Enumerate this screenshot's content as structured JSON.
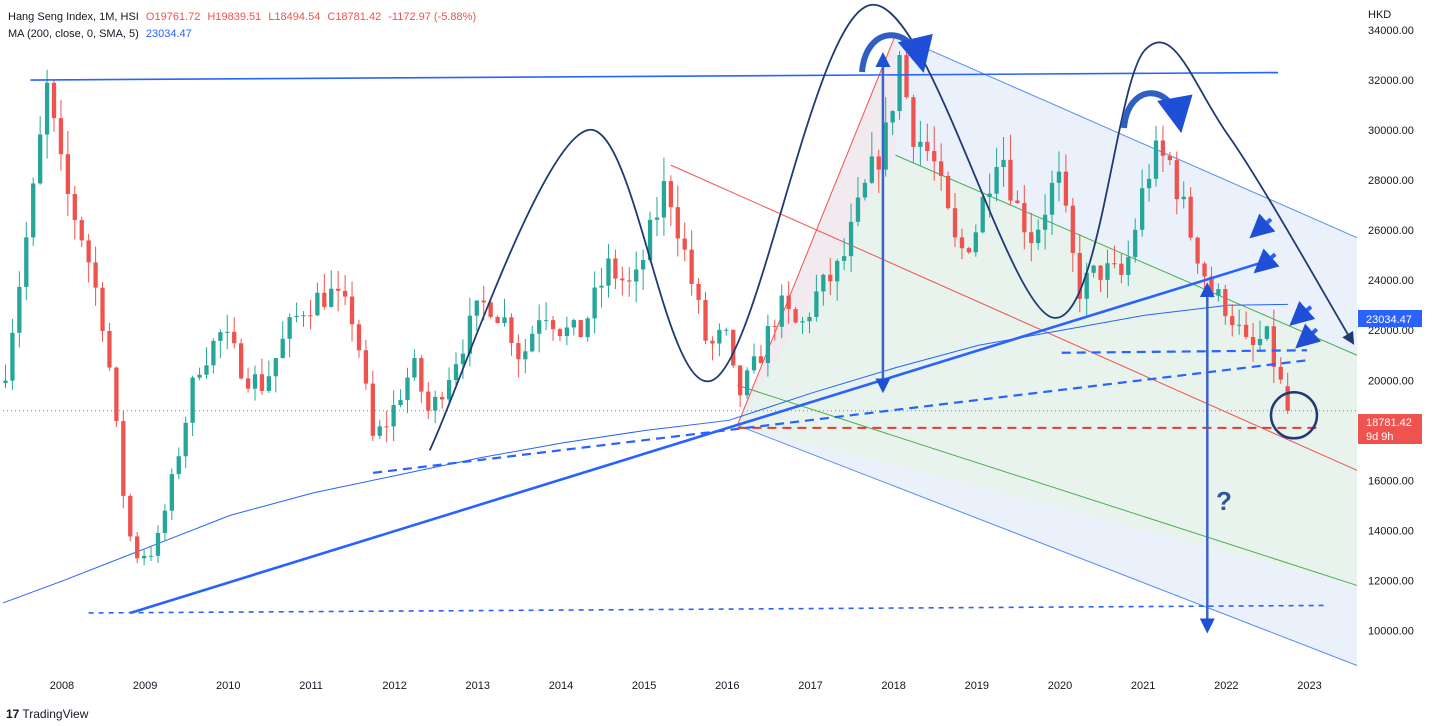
{
  "header": {
    "symbol_line": "Hang Seng Index, 1M, HSI",
    "open": "O19761.72",
    "high": "H19839.51",
    "low": "L18494.54",
    "close": "C18781.42",
    "change": "-1172.97 (-5.88%)",
    "ma_label": "MA (200, close, 0, SMA, 5)",
    "ma_value": "23034.47"
  },
  "currency": "HKD",
  "price_tag": {
    "price": "18781.42",
    "countdown": "9d 9h"
  },
  "ma_tag": "23034.47",
  "question_mark": "?",
  "branding": {
    "logo_text": "TradingView"
  },
  "colors": {
    "up": "#26a69a",
    "down": "#ef5350",
    "ma": "#2962ff",
    "drawing": "#1e4fd6",
    "curve": "#1f3b73",
    "channel_fill": "#e3ecfa"
  },
  "chart_data": {
    "type": "candlestick",
    "title": "Hang Seng Index, 1M, HSI",
    "ylabel": "HKD",
    "ylim": [
      8500,
      35000
    ],
    "y_ticks": [
      10000,
      12000,
      14000,
      16000,
      18000,
      20000,
      22000,
      24000,
      26000,
      28000,
      30000,
      32000,
      34000
    ],
    "y_tick_labels": [
      "10000.00",
      "12000.00",
      "14000.00",
      "16000.00",
      "18000.00",
      "20000.00",
      "22000.00",
      "24000.00",
      "26000.00",
      "28000.00",
      "30000.00",
      "32000.00",
      "34000.00"
    ],
    "x_range": [
      2007.27,
      2023.55
    ],
    "x_ticks": [
      2008,
      2009,
      2010,
      2011,
      2012,
      2013,
      2014,
      2015,
      2016,
      2017,
      2018,
      2019,
      2020,
      2021,
      2022,
      2023
    ],
    "x_tick_labels": [
      "2008",
      "2009",
      "2010",
      "2011",
      "2012",
      "2013",
      "2014",
      "2015",
      "2016",
      "2017",
      "2018",
      "2019",
      "2020",
      "2021",
      "2022",
      "2023"
    ],
    "grid": false,
    "last_close": 18781.42,
    "close_path": [
      [
        2007.3,
        20500
      ],
      [
        2007.62,
        27100
      ],
      [
        2007.8,
        31600
      ],
      [
        2008.0,
        27800
      ],
      [
        2008.25,
        25500
      ],
      [
        2008.5,
        22000
      ],
      [
        2008.75,
        14500
      ],
      [
        2008.85,
        13000
      ],
      [
        2009.1,
        13200
      ],
      [
        2009.3,
        15900
      ],
      [
        2009.6,
        20500
      ],
      [
        2009.9,
        21900
      ],
      [
        2010.2,
        20200
      ],
      [
        2010.4,
        19800
      ],
      [
        2010.7,
        22000
      ],
      [
        2010.9,
        23000
      ],
      [
        2011.2,
        23500
      ],
      [
        2011.5,
        22400
      ],
      [
        2011.72,
        17600
      ],
      [
        2011.9,
        18400
      ],
      [
        2012.2,
        20600
      ],
      [
        2012.4,
        18600
      ],
      [
        2012.7,
        20800
      ],
      [
        2012.95,
        22600
      ],
      [
        2013.1,
        23200
      ],
      [
        2013.35,
        22200
      ],
      [
        2013.5,
        20800
      ],
      [
        2013.75,
        23000
      ],
      [
        2014.0,
        22000
      ],
      [
        2014.2,
        21800
      ],
      [
        2014.55,
        24500
      ],
      [
        2014.85,
        23600
      ],
      [
        2015.25,
        28000
      ],
      [
        2015.5,
        24600
      ],
      [
        2015.75,
        21200
      ],
      [
        2015.95,
        21900
      ],
      [
        2016.1,
        19300
      ],
      [
        2016.35,
        20800
      ],
      [
        2016.6,
        23000
      ],
      [
        2016.85,
        22000
      ],
      [
        2017.05,
        23400
      ],
      [
        2017.35,
        24600
      ],
      [
        2017.6,
        27300
      ],
      [
        2017.9,
        29900
      ],
      [
        2018.05,
        32900
      ],
      [
        2018.2,
        30100
      ],
      [
        2018.45,
        28800
      ],
      [
        2018.75,
        25000
      ],
      [
        2018.95,
        25900
      ],
      [
        2019.25,
        29600
      ],
      [
        2019.45,
        27000
      ],
      [
        2019.65,
        25700
      ],
      [
        2019.95,
        28200
      ],
      [
        2020.2,
        23600
      ],
      [
        2020.45,
        24400
      ],
      [
        2020.75,
        24100
      ],
      [
        2020.95,
        27200
      ],
      [
        2021.1,
        29000
      ],
      [
        2021.3,
        28700
      ],
      [
        2021.55,
        25900
      ],
      [
        2021.8,
        23500
      ],
      [
        2022.0,
        22900
      ],
      [
        2022.25,
        21100
      ],
      [
        2022.45,
        21800
      ],
      [
        2022.6,
        20200
      ],
      [
        2022.72,
        18781.42
      ]
    ],
    "moving_average": {
      "name": "MA (200, close, 0, SMA, 5)",
      "last": 23034.47,
      "points": [
        [
          2007.27,
          11100
        ],
        [
          2008.0,
          12000
        ],
        [
          2009.0,
          13300
        ],
        [
          2010.0,
          14600
        ],
        [
          2011.0,
          15500
        ],
        [
          2012.0,
          16200
        ],
        [
          2013.0,
          16900
        ],
        [
          2014.0,
          17500
        ],
        [
          2015.0,
          18000
        ],
        [
          2016.0,
          18400
        ],
        [
          2017.0,
          19500
        ],
        [
          2018.0,
          20500
        ],
        [
          2019.0,
          21400
        ],
        [
          2020.0,
          22000
        ],
        [
          2021.0,
          22600
        ],
        [
          2022.0,
          23000
        ],
        [
          2022.72,
          23034
        ]
      ]
    },
    "close_reference_line": 18781.42,
    "annotations": {
      "resistance_line": {
        "from": [
          2007.6,
          32000
        ],
        "to": [
          2022.6,
          32300
        ]
      },
      "rising_trend_line": {
        "from": [
          2008.8,
          10700
        ],
        "to": [
          2022.4,
          24700
        ]
      },
      "dashed_support_low": {
        "from": [
          2008.3,
          10700
        ],
        "to": [
          2023.15,
          11000
        ]
      },
      "dashed_neckline": {
        "from": [
          2011.72,
          16300
        ],
        "to": [
          2022.95,
          20800
        ]
      },
      "dashed_neckline_2": {
        "from": [
          2020.0,
          21100
        ],
        "to": [
          2022.95,
          21200
        ]
      },
      "horizontal_dashed_red": {
        "from": [
          2016.1,
          18100
        ],
        "to": [
          2023.1,
          18100
        ]
      },
      "channel_top": {
        "from": [
          2018.0,
          33800
        ],
        "to": [
          2023.55,
          25700
        ]
      },
      "channel_mid_green": {
        "from": [
          2018.0,
          29000
        ],
        "to": [
          2023.55,
          21000
        ]
      },
      "channel_red_line": {
        "from": [
          2015.3,
          28600
        ],
        "to": [
          2023.55,
          16400
        ]
      },
      "channel_green_lower": {
        "from": [
          2016.1,
          19800
        ],
        "to": [
          2023.55,
          11800
        ]
      },
      "channel_bottom": {
        "from": [
          2016.1,
          18200
        ],
        "to": [
          2023.55,
          8600
        ]
      },
      "measure_arrow_up": {
        "x": 2017.85,
        "from": 19600,
        "to": 33000
      },
      "measure_arrow_down": {
        "x": 2021.75,
        "from": 23800,
        "to": 10000
      },
      "wave_curve": [
        [
          2012.4,
          17200
        ],
        [
          2014.3,
          30000
        ],
        [
          2015.8,
          20000
        ],
        [
          2017.7,
          35000
        ],
        [
          2019.9,
          22500
        ],
        [
          2021.0,
          33200
        ],
        [
          2022.0,
          29800
        ],
        [
          2023.5,
          21500
        ]
      ],
      "circle_target": {
        "x": 2022.72,
        "y": 18600
      },
      "question_mark": {
        "x": 2021.95,
        "y": 15900
      },
      "blue_arrows": [
        [
          2022.3,
          25800
        ],
        [
          2022.35,
          24400
        ],
        [
          2022.78,
          22300
        ],
        [
          2022.85,
          21400
        ]
      ]
    }
  }
}
